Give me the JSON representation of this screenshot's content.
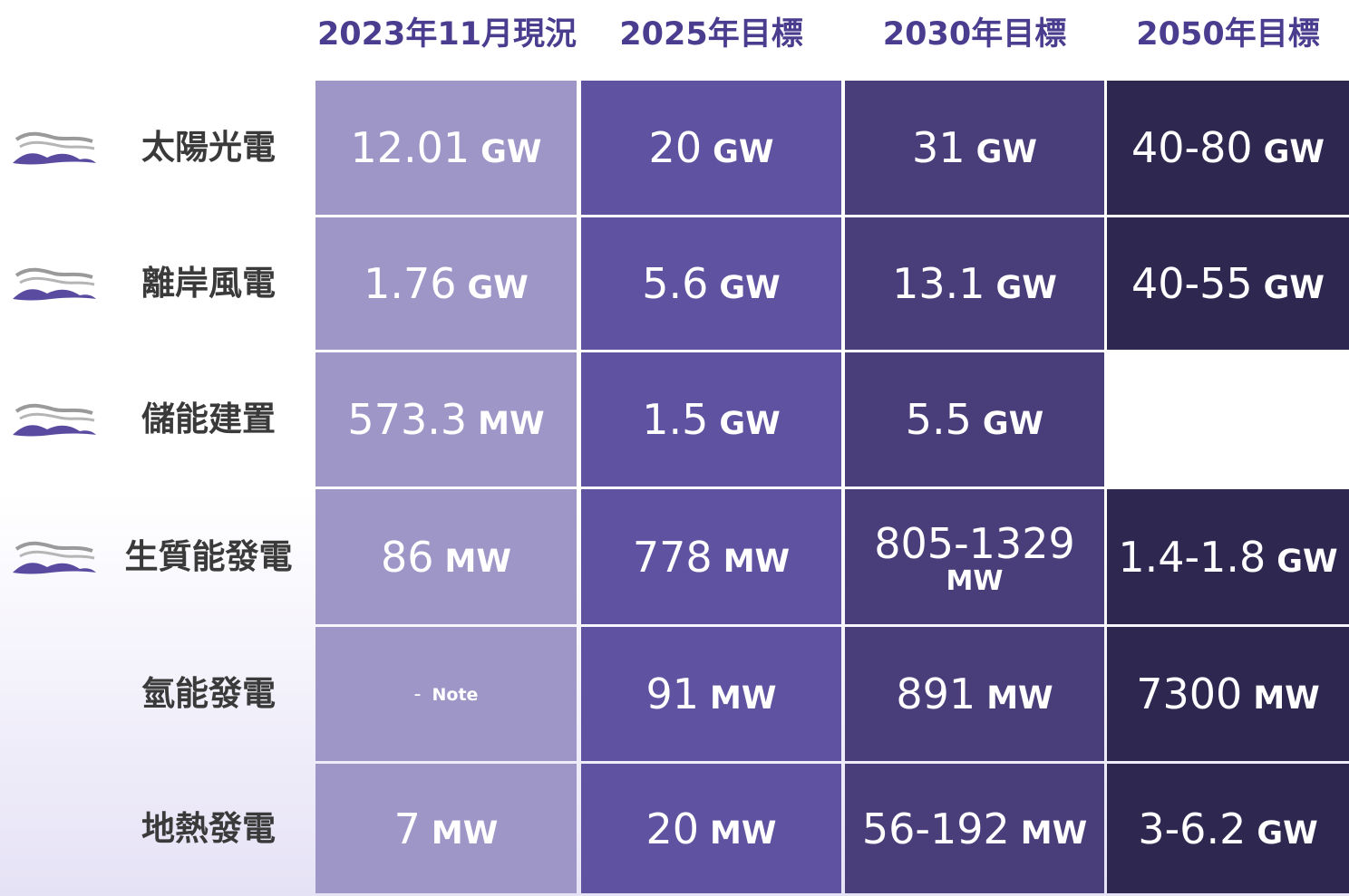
{
  "table": {
    "columns": [
      "2023年11月現況",
      "2025年目標",
      "2030年目標",
      "2050年目標"
    ],
    "rows": [
      {
        "label": "太陽光電",
        "cells": [
          {
            "value": "12.01",
            "unit": "GW"
          },
          {
            "value": "20",
            "unit": "GW"
          },
          {
            "value": "31",
            "unit": "GW"
          },
          {
            "value": "40-80",
            "unit": "GW"
          }
        ]
      },
      {
        "label": "離岸風電",
        "cells": [
          {
            "value": "1.76",
            "unit": "GW"
          },
          {
            "value": "5.6",
            "unit": "GW"
          },
          {
            "value": "13.1",
            "unit": "GW"
          },
          {
            "value": "40-55",
            "unit": "GW"
          }
        ]
      },
      {
        "label": "儲能建置",
        "cells": [
          {
            "value": "573.3",
            "unit": "MW"
          },
          {
            "value": "1.5",
            "unit": "GW"
          },
          {
            "value": "5.5",
            "unit": "GW"
          },
          null
        ]
      },
      {
        "label": "生質能發電",
        "cells": [
          {
            "value": "86",
            "unit": "MW"
          },
          {
            "value": "778",
            "unit": "MW"
          },
          {
            "value": "805-1329",
            "unit": "MW"
          },
          {
            "value": "1.4-1.8",
            "unit": "GW"
          }
        ]
      },
      {
        "label": "氫能發電",
        "cells": [
          {
            "value": "-",
            "unit": "Note"
          },
          {
            "value": "91",
            "unit": "MW"
          },
          {
            "value": "891",
            "unit": "MW"
          },
          {
            "value": "7300",
            "unit": "MW"
          }
        ]
      },
      {
        "label": "地熱發電",
        "cells": [
          {
            "value": "7",
            "unit": "MW"
          },
          {
            "value": "20",
            "unit": "MW"
          },
          {
            "value": "56-192",
            "unit": "MW"
          },
          {
            "value": "3-6.2",
            "unit": "GW"
          }
        ]
      }
    ]
  }
}
